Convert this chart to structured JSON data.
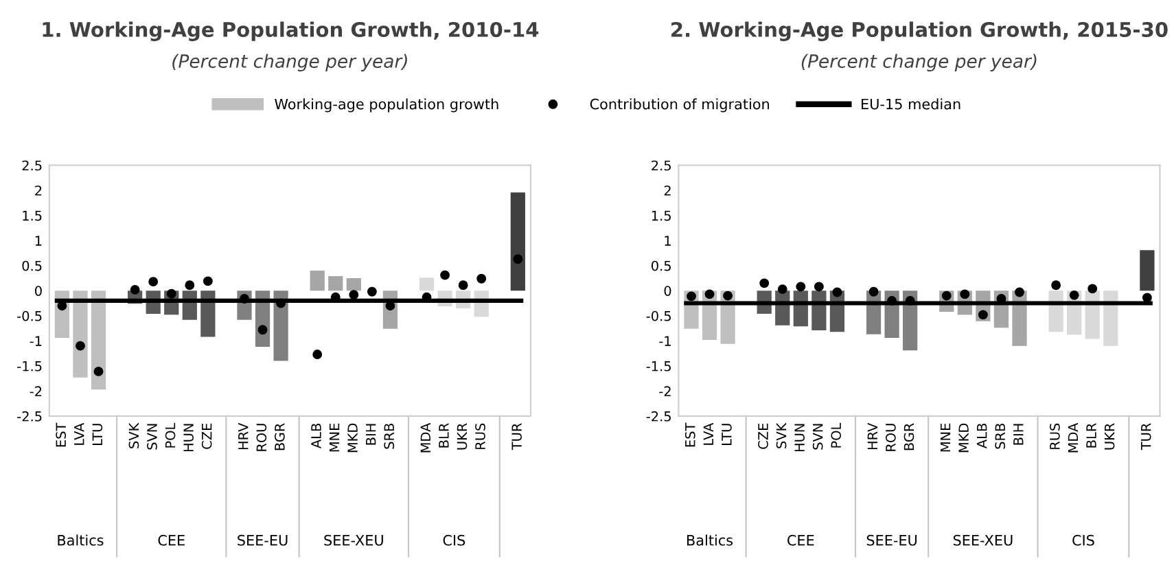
{
  "chart_data": [
    {
      "type": "bar",
      "title": "1. Working-Age Population Growth, 2010-14",
      "subtitle": "(Percent change per year)",
      "categories": [
        "EST",
        "LVA",
        "LTU",
        null,
        "SVK",
        "SVN",
        "POL",
        "HUN",
        "CZE",
        null,
        "HRV",
        "ROU",
        "BGR",
        null,
        "ALB",
        "MNE",
        "MKD",
        "BIH",
        "SRB",
        null,
        "MDA",
        "BLR",
        "UKR",
        "RUS",
        null,
        "TUR"
      ],
      "series": [
        {
          "name": "Working-age population growth",
          "type": "bar",
          "color": "#bfbfbf",
          "colors": [
            "#bfbfbf",
            "#bfbfbf",
            "#bfbfbf",
            null,
            "#595959",
            "#595959",
            "#595959",
            "#595959",
            "#595959",
            null,
            "#808080",
            "#808080",
            "#808080",
            null,
            "#a6a6a6",
            "#a6a6a6",
            "#a6a6a6",
            "#a6a6a6",
            "#a6a6a6",
            null,
            "#d9d9d9",
            "#d9d9d9",
            "#d9d9d9",
            "#d9d9d9",
            null,
            "#404040"
          ],
          "values": [
            -0.94,
            -1.73,
            -1.97,
            null,
            -0.26,
            -0.46,
            -0.48,
            -0.58,
            -0.92,
            null,
            -0.58,
            -1.12,
            -1.4,
            null,
            0.4,
            0.29,
            0.25,
            null,
            -0.76,
            null,
            0.26,
            -0.31,
            -0.35,
            -0.52,
            null,
            1.96
          ]
        },
        {
          "name": "Contribution of migration",
          "type": "scatter",
          "color": "#000000",
          "values": [
            -0.3,
            -1.1,
            -1.61,
            null,
            0.02,
            0.18,
            -0.06,
            0.11,
            0.19,
            null,
            -0.16,
            -0.78,
            -0.25,
            null,
            -1.27,
            -0.13,
            -0.08,
            -0.02,
            -0.3,
            null,
            -0.13,
            0.31,
            0.11,
            0.24,
            null,
            0.63
          ]
        }
      ],
      "ref_lines": [
        {
          "axis": "y",
          "value": -0.2,
          "label": "EU-15 median",
          "color": "#000000"
        }
      ],
      "ylim": [
        -2.5,
        2.5
      ],
      "yticks": [
        -2.5,
        -2,
        -1.5,
        -1,
        -0.5,
        0,
        0.5,
        1,
        1.5,
        2,
        2.5
      ],
      "annotations": [
        "Baltics",
        "CEE",
        "SEE-EU",
        "SEE-XEU",
        "CIS"
      ],
      "legend": "top",
      "grid": false,
      "marker": "circle"
    },
    {
      "type": "bar",
      "title": "2. Working-Age Population Growth, 2015-30",
      "subtitle": "(Percent change per year)",
      "categories": [
        "EST",
        "LVA",
        "LTU",
        null,
        "CZE",
        "SVK",
        "HUN",
        "SVN",
        "POL",
        null,
        "HRV",
        "ROU",
        "BGR",
        null,
        "MNE",
        "MKD",
        "ALB",
        "SRB",
        "BIH",
        null,
        "RUS",
        "MDA",
        "BLR",
        "UKR",
        null,
        "TUR"
      ],
      "series": [
        {
          "type": "bar",
          "color": "#bfbfbf",
          "colors": [
            "#bfbfbf",
            "#bfbfbf",
            "#bfbfbf",
            null,
            "#595959",
            "#595959",
            "#595959",
            "#595959",
            "#595959",
            null,
            "#808080",
            "#808080",
            "#808080",
            null,
            "#a6a6a6",
            "#a6a6a6",
            "#a6a6a6",
            "#a6a6a6",
            "#a6a6a6",
            null,
            "#d9d9d9",
            "#d9d9d9",
            "#d9d9d9",
            "#d9d9d9",
            null,
            "#404040"
          ],
          "values": [
            -0.76,
            -0.98,
            -1.06,
            null,
            -0.46,
            -0.69,
            -0.71,
            -0.79,
            -0.82,
            null,
            -0.87,
            -0.94,
            -1.19,
            null,
            -0.42,
            -0.48,
            -0.61,
            -0.74,
            -1.1,
            null,
            -0.82,
            -0.88,
            -0.96,
            -1.1,
            null,
            0.81
          ]
        },
        {
          "type": "scatter",
          "color": "#000000",
          "values": [
            -0.11,
            -0.07,
            -0.1,
            null,
            0.15,
            0.03,
            0.08,
            0.08,
            -0.03,
            null,
            -0.02,
            -0.2,
            -0.2,
            null,
            -0.1,
            -0.07,
            -0.48,
            -0.16,
            -0.03,
            null,
            0.11,
            -0.09,
            0.04,
            null,
            null,
            -0.14
          ]
        }
      ],
      "ref_lines": [
        {
          "axis": "y",
          "value": -0.25,
          "color": "#000000"
        }
      ],
      "ylim": [
        -2.5,
        2.5
      ],
      "yticks": [
        -2.5,
        -2,
        -1.5,
        -1,
        -0.5,
        0,
        0.5,
        1,
        1.5,
        2,
        2.5
      ],
      "annotations": [
        "Baltics",
        "CEE",
        "SEE-EU",
        "SEE-XEU",
        "CIS"
      ],
      "grid": false,
      "marker": "circle"
    }
  ]
}
